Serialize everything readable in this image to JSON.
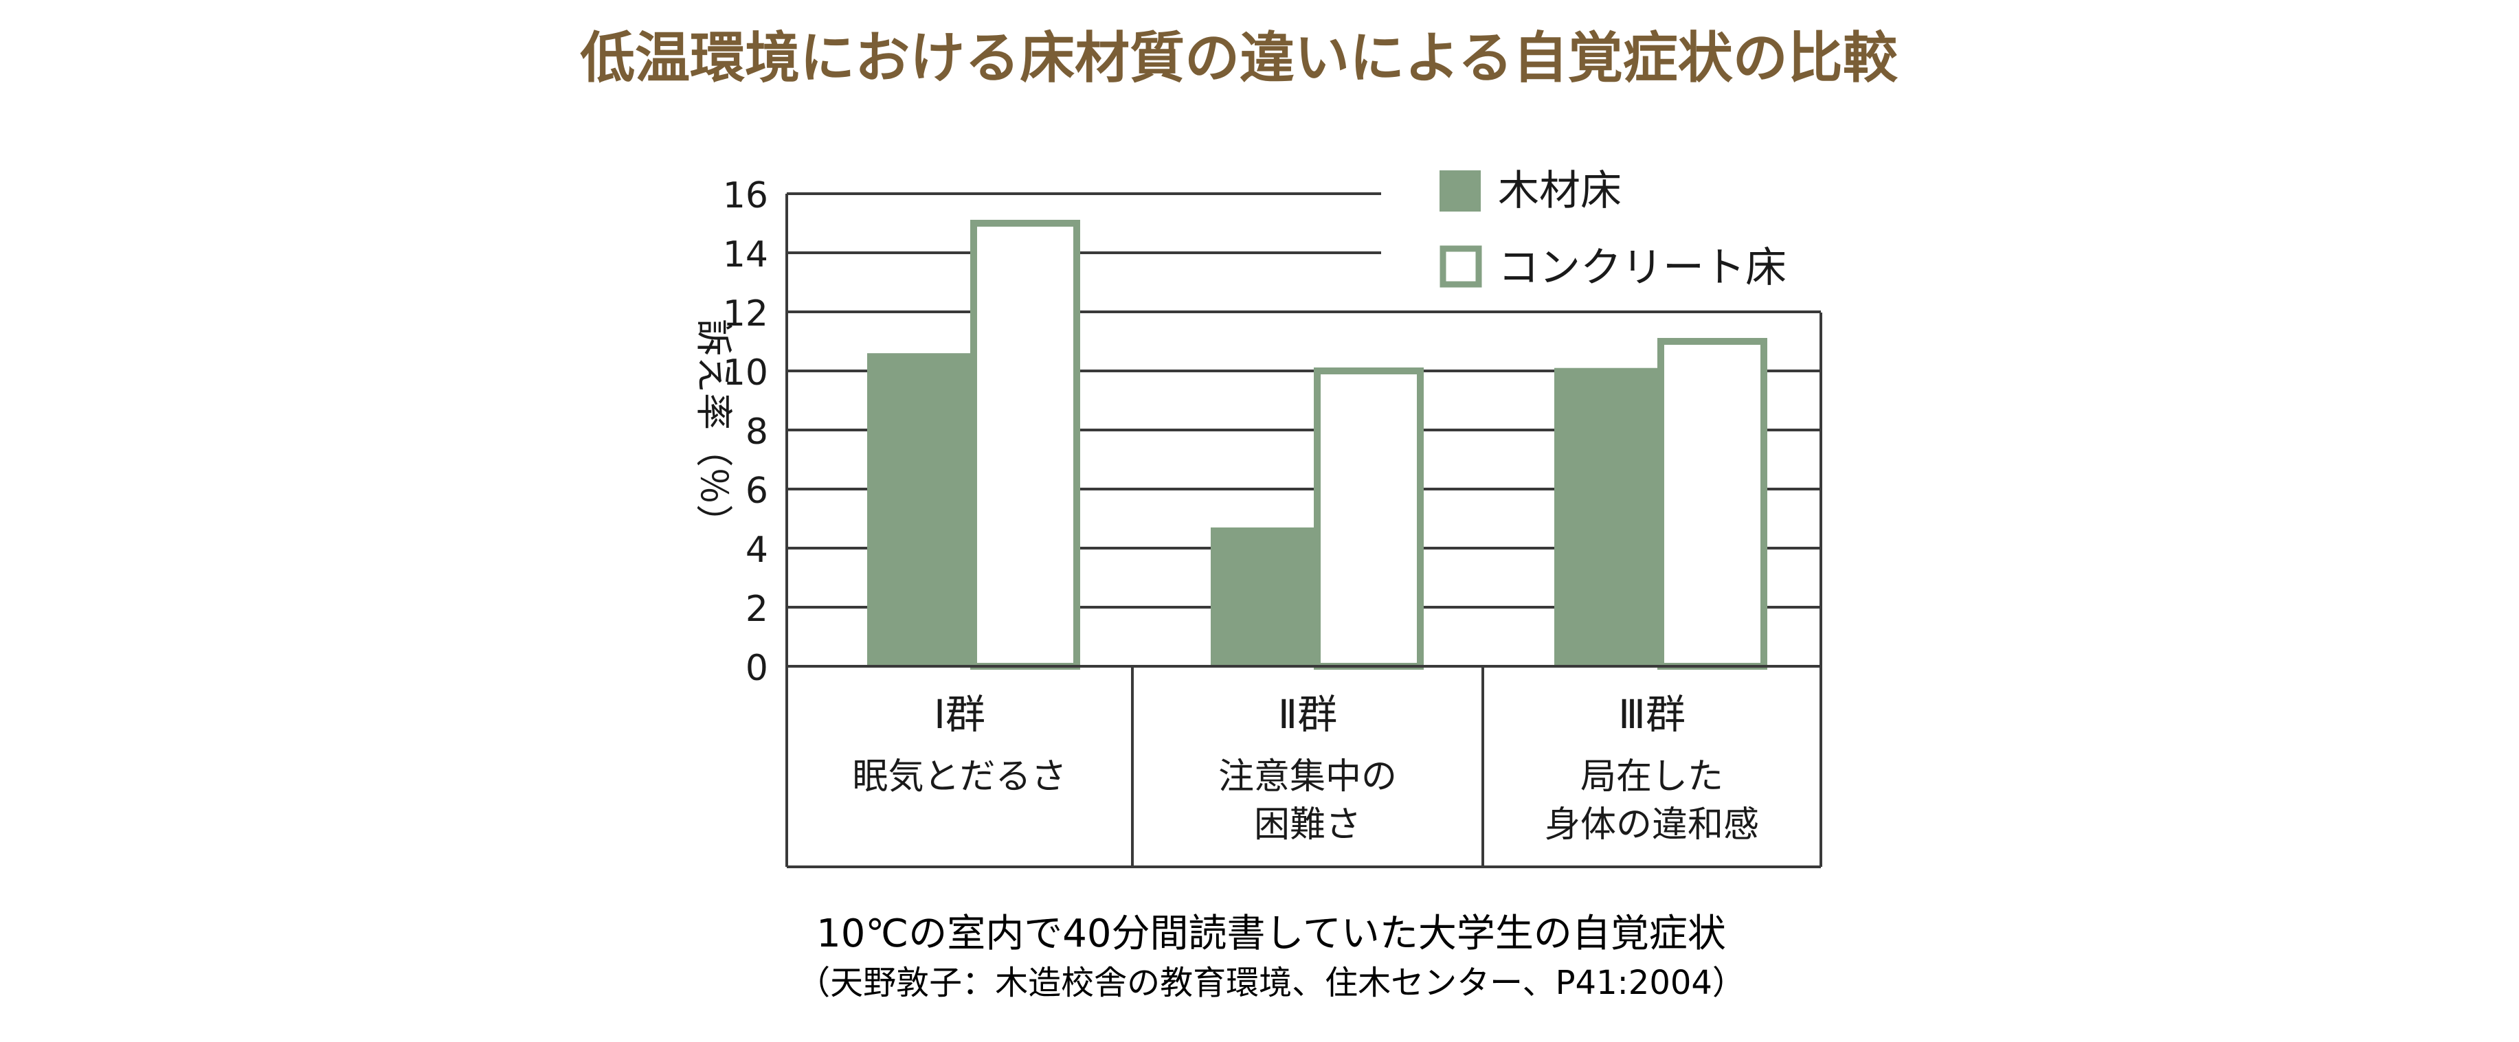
{
  "colors": {
    "title": "#7a5e36",
    "wood": "#84a083",
    "concrete_border": "#84a083",
    "axis": "#3a3a3a",
    "text": "#1a1a1a"
  },
  "chart_data": {
    "type": "bar",
    "title": "低温環境における床材質の違いによる自覚症状の比較",
    "ylabel": "訴え率（％）",
    "ylim": [
      0,
      16
    ],
    "yticks": [
      0,
      2,
      4,
      6,
      8,
      10,
      12,
      14,
      16
    ],
    "grid": true,
    "legend_position": "top-right",
    "categories": [
      {
        "group": "Ⅰ群",
        "lines": [
          "眠気とだるさ"
        ]
      },
      {
        "group": "Ⅱ群",
        "lines": [
          "注意集中の",
          "困難さ"
        ]
      },
      {
        "group": "Ⅲ群",
        "lines": [
          "局在した",
          "身体の違和感"
        ]
      }
    ],
    "series": [
      {
        "name": "木材床",
        "values": [
          10.6,
          4.7,
          10.1
        ]
      },
      {
        "name": "コンクリート床",
        "values": [
          15.0,
          10.0,
          11.0
        ]
      }
    ]
  },
  "caption": {
    "line1": "10℃の室内で40分間読書していた大学生の自覚症状",
    "line2": "（天野敦子：木造校舎の教育環境、住木センター、P41:2004）"
  }
}
